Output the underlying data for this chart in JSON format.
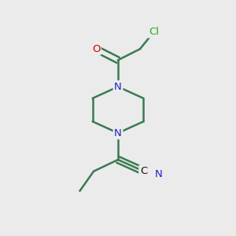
{
  "background_color": "#ebebeb",
  "bond_color": "#3a7a52",
  "bond_width": 1.8,
  "atom_colors": {
    "N": "#2222cc",
    "O": "#cc0000",
    "Cl": "#22aa22",
    "C": "#111111",
    "CN_label": "#111111"
  },
  "font_size_atom": 9.5,
  "fig_size": [
    3.0,
    3.0
  ],
  "dpi": 100,
  "xlim": [
    0,
    10
  ],
  "ylim": [
    0,
    10
  ]
}
